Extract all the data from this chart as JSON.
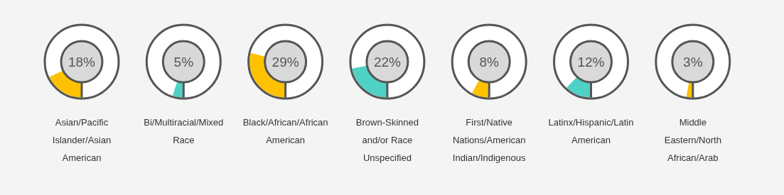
{
  "chart_data": [
    {
      "type": "donut",
      "title": "Asian/Pacific Islander/Asian American",
      "categories": [
        null,
        null
      ],
      "values": [
        18,
        82
      ],
      "colors": [
        "#ffc200",
        "#ffffff"
      ],
      "value_labels": [
        "18%",
        null
      ]
    },
    {
      "type": "donut",
      "title": "Bi/Multiracial/Mixed Race",
      "categories": [
        null,
        null
      ],
      "values": [
        5,
        95
      ],
      "colors": [
        "#4fd1c5",
        "#ffffff"
      ],
      "value_labels": [
        "5%",
        null
      ]
    },
    {
      "type": "donut",
      "title": "Black/African/African American",
      "categories": [
        null,
        null
      ],
      "values": [
        29,
        71
      ],
      "colors": [
        "#ffc200",
        "#ffffff"
      ],
      "value_labels": [
        "29%",
        null
      ]
    },
    {
      "type": "donut",
      "title": "Brown-Skinned and/or Race Unspecified",
      "categories": [
        null,
        null
      ],
      "values": [
        22,
        78
      ],
      "colors": [
        "#4fd1c5",
        "#ffffff"
      ],
      "value_labels": [
        "22%",
        null
      ]
    },
    {
      "type": "donut",
      "title": "First/Native Nations/American Indian/Indigenous",
      "categories": [
        null,
        null
      ],
      "values": [
        8,
        92
      ],
      "colors": [
        "#ffc200",
        "#ffffff"
      ],
      "value_labels": [
        "8%",
        null
      ]
    },
    {
      "type": "donut",
      "title": "Latinx/Hispanic/Latin American",
      "categories": [
        null,
        null
      ],
      "values": [
        12,
        88
      ],
      "colors": [
        "#4fd1c5",
        "#ffffff"
      ],
      "value_labels": [
        "12%",
        null
      ]
    },
    {
      "type": "donut",
      "title": "Middle Eastern/North African/Arab",
      "categories": [
        null,
        null
      ],
      "values": [
        3,
        97
      ],
      "colors": [
        "#ffc200",
        "#ffffff"
      ],
      "value_labels": [
        "3%",
        null
      ]
    }
  ]
}
